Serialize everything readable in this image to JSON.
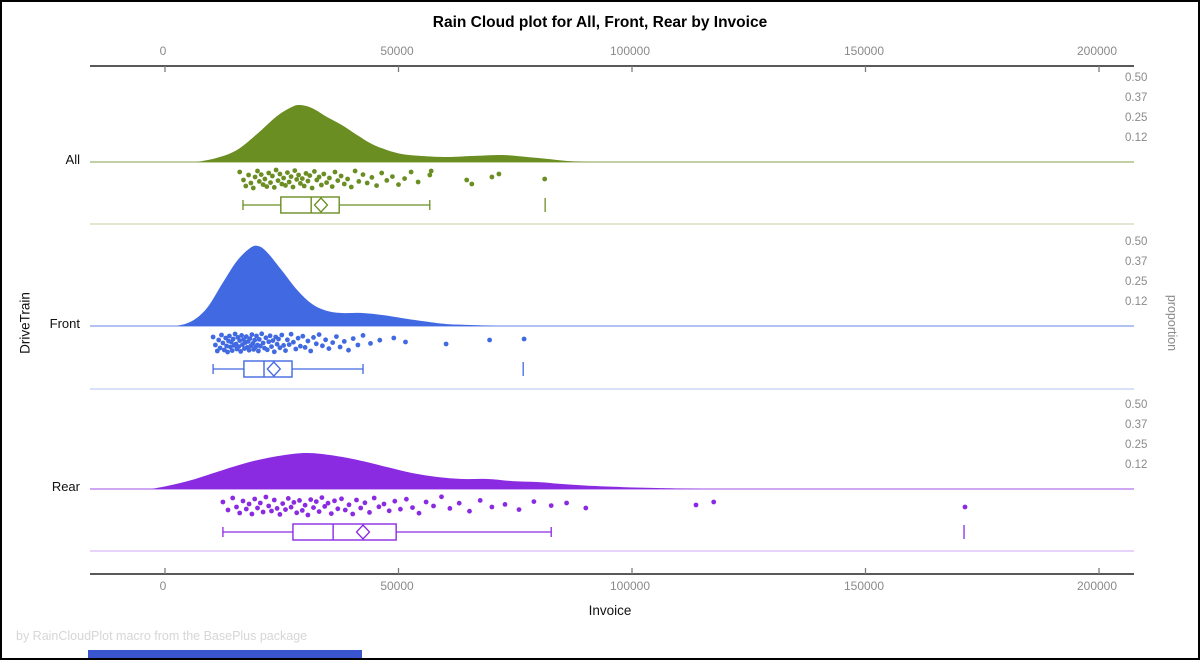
{
  "title": "Rain Cloud plot for All, Front, Rear by Invoice",
  "footer": "by RainCloudPlot macro from the BasePlus package",
  "axes": {
    "x_label": "Invoice",
    "x_tick_labels": [
      "0",
      "50000",
      "100000",
      "150000",
      "200000"
    ],
    "left_label": "DriveTrain",
    "right_label": "proportion"
  },
  "chart_data": {
    "type": "raincloud",
    "title": "Rain Cloud plot for All, Front, Rear by Invoice",
    "x_variable": "Invoice",
    "group_variable": "DriveTrain",
    "x_range": [
      0,
      200000
    ],
    "x_ticks": [
      0,
      50000,
      100000,
      150000,
      200000
    ],
    "proportion_tick_labels": [
      "0.50",
      "0.37",
      "0.25",
      "0.12"
    ],
    "proportion_tick_values": [
      0.5,
      0.37,
      0.25,
      0.12
    ],
    "groups": [
      {
        "name": "All",
        "color": "#6b8e23",
        "density": {
          "x": [
            6900,
            11100,
            15400,
            19700,
            24000,
            27200,
            28900,
            31500,
            34700,
            37900,
            41100,
            44300,
            47500,
            50800,
            55000,
            60400,
            65700,
            72200,
            77500,
            81800,
            86100,
            90400
          ],
          "p": [
            0,
            0.025,
            0.074,
            0.173,
            0.284,
            0.34,
            0.352,
            0.333,
            0.278,
            0.228,
            0.167,
            0.111,
            0.074,
            0.049,
            0.037,
            0.031,
            0.037,
            0.043,
            0.031,
            0.019,
            0.006,
            0
          ]
        },
        "box": {
          "min": 16700,
          "q1": 24800,
          "median": 31300,
          "mean": 33400,
          "q3": 37300,
          "max": 56700,
          "outliers": [
            81400
          ]
        },
        "points_x": [
          16000,
          16800,
          17300,
          17900,
          18400,
          18900,
          19300,
          19800,
          20200,
          20600,
          21000,
          21400,
          21800,
          22200,
          22600,
          23000,
          23400,
          23800,
          24200,
          24600,
          25000,
          25400,
          25800,
          26200,
          26600,
          27000,
          27400,
          27800,
          28200,
          28600,
          29000,
          29400,
          29800,
          30200,
          30600,
          31000,
          31500,
          32000,
          32500,
          33000,
          33500,
          34000,
          34600,
          35200,
          35800,
          36400,
          37000,
          37700,
          38400,
          39100,
          39900,
          40700,
          41500,
          42400,
          43300,
          44300,
          45300,
          46400,
          47500,
          48700,
          50000,
          51300,
          52700,
          54200,
          56700,
          57000,
          64600,
          65700,
          70000,
          71500,
          81300
        ],
        "points_j": [
          0.15,
          0.55,
          0.85,
          0.3,
          0.7,
          0.95,
          0.4,
          0.1,
          0.62,
          0.28,
          0.78,
          0.5,
          0.88,
          0.2,
          0.68,
          0.35,
          0.92,
          0.05,
          0.58,
          0.25,
          0.75,
          0.45,
          0.82,
          0.18,
          0.65,
          0.38,
          0.9,
          0.08,
          0.52,
          0.3,
          0.72,
          0.48,
          0.85,
          0.22,
          0.6,
          0.33,
          0.95,
          0.12,
          0.55,
          0.4,
          0.8,
          0.25,
          0.68,
          0.45,
          0.88,
          0.15,
          0.58,
          0.35,
          0.75,
          0.5,
          0.9,
          0.1,
          0.62,
          0.28,
          0.7,
          0.42,
          0.83,
          0.2,
          0.57,
          0.38,
          0.78,
          0.48,
          0.15,
          0.65,
          0.3,
          0.1,
          0.55,
          0.75,
          0.4,
          0.25,
          0.5
        ]
      },
      {
        "name": "Front",
        "color": "#4169e1",
        "density": {
          "x": [
            2600,
            5800,
            9000,
            12200,
            15400,
            18200,
            19900,
            21800,
            25100,
            28300,
            31500,
            34700,
            37900,
            42200,
            46500,
            50800,
            55000,
            60400,
            65700,
            71100
          ],
          "p": [
            0,
            0.031,
            0.111,
            0.259,
            0.401,
            0.481,
            0.494,
            0.457,
            0.34,
            0.222,
            0.136,
            0.093,
            0.08,
            0.08,
            0.068,
            0.049,
            0.031,
            0.012,
            0.006,
            0
          ]
        },
        "box": {
          "min": 10300,
          "q1": 16900,
          "median": 21200,
          "mean": 23300,
          "q3": 27200,
          "max": 42400,
          "outliers": [
            76700
          ]
        },
        "points_x": [
          10300,
          10800,
          11200,
          11500,
          11800,
          12100,
          12400,
          12700,
          13000,
          13200,
          13400,
          13600,
          13800,
          14000,
          14200,
          14400,
          14600,
          14800,
          15000,
          15200,
          15400,
          15600,
          15800,
          16000,
          16200,
          16400,
          16600,
          16800,
          17000,
          17200,
          17400,
          17600,
          17800,
          18000,
          18200,
          18400,
          18600,
          18800,
          19000,
          19200,
          19400,
          19600,
          19800,
          20000,
          20200,
          20400,
          20700,
          21000,
          21300,
          21600,
          21900,
          22200,
          22500,
          22800,
          23100,
          23400,
          23700,
          24000,
          24300,
          24600,
          25000,
          25400,
          25800,
          26200,
          26600,
          27000,
          27500,
          28000,
          28500,
          29000,
          29500,
          30000,
          30600,
          31200,
          31800,
          32400,
          33000,
          33700,
          34400,
          35100,
          35900,
          36700,
          37500,
          38400,
          39300,
          40300,
          41300,
          42400,
          44000,
          46000,
          49000,
          51500,
          60200,
          69500,
          76900
        ],
        "points_j": [
          0.2,
          0.6,
          0.9,
          0.35,
          0.75,
          0.1,
          0.5,
          0.85,
          0.25,
          0.65,
          0.95,
          0.4,
          0.15,
          0.7,
          0.45,
          0.88,
          0.3,
          0.62,
          0.05,
          0.55,
          0.8,
          0.22,
          0.68,
          0.38,
          0.92,
          0.12,
          0.58,
          0.33,
          0.78,
          0.48,
          0.18,
          0.72,
          0.42,
          0.86,
          0.28,
          0.64,
          0.08,
          0.52,
          0.82,
          0.36,
          0.7,
          0.15,
          0.6,
          0.9,
          0.32,
          0.66,
          0.04,
          0.5,
          0.76,
          0.24,
          0.84,
          0.44,
          0.14,
          0.68,
          0.38,
          0.94,
          0.2,
          0.56,
          0.3,
          0.74,
          0.1,
          0.62,
          0.88,
          0.34,
          0.58,
          0.06,
          0.46,
          0.8,
          0.26,
          0.66,
          0.16,
          0.72,
          0.4,
          0.9,
          0.22,
          0.54,
          0.08,
          0.64,
          0.34,
          0.78,
          0.48,
          0.18,
          0.7,
          0.42,
          0.86,
          0.28,
          0.6,
          0.12,
          0.52,
          0.36,
          0.25,
          0.45,
          0.55,
          0.35,
          0.3
        ]
      },
      {
        "name": "Rear",
        "color": "#8a2be2",
        "density": {
          "x": [
            -2800,
            1500,
            5800,
            11100,
            16500,
            21800,
            27200,
            30400,
            33600,
            37900,
            42200,
            47500,
            52900,
            58300,
            63600,
            69000,
            74300,
            79700,
            85000,
            91500,
            97900,
            105400,
            115000
          ],
          "p": [
            0,
            0.025,
            0.056,
            0.105,
            0.154,
            0.191,
            0.216,
            0.222,
            0.216,
            0.198,
            0.173,
            0.136,
            0.099,
            0.074,
            0.062,
            0.062,
            0.049,
            0.043,
            0.031,
            0.019,
            0.012,
            0.006,
            0
          ]
        },
        "box": {
          "min": 12400,
          "q1": 27400,
          "median": 36000,
          "mean": 42400,
          "q3": 49500,
          "max": 82700,
          "outliers": [
            171100
          ]
        },
        "points_x": [
          12400,
          13500,
          14500,
          15300,
          16000,
          16700,
          17400,
          18000,
          18600,
          19200,
          19800,
          20400,
          21000,
          21600,
          22200,
          22800,
          23400,
          24000,
          24600,
          25200,
          25800,
          26400,
          27000,
          27600,
          28200,
          28800,
          29400,
          30000,
          30600,
          31200,
          31800,
          32400,
          33000,
          33600,
          34200,
          34900,
          35600,
          36300,
          37000,
          37800,
          38600,
          39400,
          40200,
          41000,
          41900,
          42800,
          43800,
          44800,
          45800,
          46900,
          48000,
          49200,
          50400,
          51700,
          53000,
          54400,
          55900,
          57500,
          59200,
          61000,
          63000,
          65200,
          67500,
          70000,
          72800,
          75800,
          79000,
          82700,
          86000,
          90100,
          113700,
          117500,
          171300
        ],
        "points_j": [
          0.3,
          0.7,
          0.1,
          0.55,
          0.85,
          0.25,
          0.65,
          0.4,
          0.9,
          0.15,
          0.6,
          0.35,
          0.8,
          0.05,
          0.5,
          0.75,
          0.2,
          0.62,
          0.92,
          0.38,
          0.68,
          0.12,
          0.56,
          0.32,
          0.84,
          0.22,
          0.72,
          0.46,
          0.95,
          0.18,
          0.58,
          0.28,
          0.78,
          0.08,
          0.52,
          0.36,
          0.88,
          0.24,
          0.64,
          0.14,
          0.7,
          0.44,
          0.9,
          0.2,
          0.6,
          0.34,
          0.82,
          0.1,
          0.54,
          0.4,
          0.74,
          0.26,
          0.66,
          0.16,
          0.58,
          0.86,
          0.3,
          0.5,
          0.04,
          0.62,
          0.36,
          0.76,
          0.22,
          0.55,
          0.42,
          0.68,
          0.28,
          0.48,
          0.35,
          0.6,
          0.45,
          0.3,
          0.55
        ]
      }
    ]
  },
  "misc": {
    "bottom_bar_color": "#3a55d0"
  }
}
